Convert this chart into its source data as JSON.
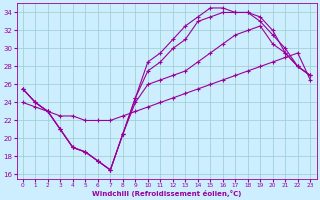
{
  "xlabel": "Windchill (Refroidissement éolien,°C)",
  "xlim": [
    -0.5,
    23.5
  ],
  "ylim": [
    15.5,
    35.0
  ],
  "xticks": [
    0,
    1,
    2,
    3,
    4,
    5,
    6,
    7,
    8,
    9,
    10,
    11,
    12,
    13,
    14,
    15,
    16,
    17,
    18,
    19,
    20,
    21,
    22,
    23
  ],
  "yticks": [
    16,
    18,
    20,
    22,
    24,
    26,
    28,
    30,
    32,
    34
  ],
  "bg_color": "#cceeff",
  "grid_color": "#99cccc",
  "line_color": "#990099",
  "lines": [
    {
      "x": [
        0,
        1,
        2,
        3,
        4,
        5,
        6,
        7,
        8,
        9,
        10,
        11,
        12,
        13,
        14,
        15,
        16,
        17,
        18,
        19,
        20,
        21,
        22,
        23
      ],
      "y": [
        25.5,
        24.0,
        23.0,
        21.0,
        19.0,
        18.5,
        17.5,
        16.5,
        20.5,
        24.0,
        26.0,
        26.5,
        27.0,
        27.5,
        28.5,
        29.5,
        30.5,
        31.5,
        32.0,
        32.5,
        30.5,
        29.5,
        28.0,
        27.0
      ]
    },
    {
      "x": [
        0,
        1,
        2,
        3,
        4,
        5,
        6,
        7,
        8,
        9,
        10,
        11,
        12,
        13,
        14,
        15,
        16,
        17,
        18,
        19,
        20,
        21,
        22,
        23
      ],
      "y": [
        25.5,
        24.0,
        23.0,
        21.0,
        19.0,
        18.5,
        17.5,
        16.5,
        20.5,
        24.5,
        28.5,
        29.5,
        31.0,
        32.5,
        33.5,
        34.5,
        34.5,
        34.0,
        34.0,
        33.5,
        32.0,
        29.5,
        28.0,
        27.0
      ]
    },
    {
      "x": [
        0,
        1,
        2,
        3,
        4,
        5,
        6,
        7,
        8,
        9,
        10,
        11,
        12,
        13,
        14,
        15,
        16,
        17,
        18,
        19,
        20,
        21,
        22,
        23
      ],
      "y": [
        25.5,
        24.0,
        23.0,
        21.0,
        19.0,
        18.5,
        17.5,
        16.5,
        20.5,
        24.5,
        27.5,
        28.5,
        30.0,
        31.0,
        33.0,
        33.5,
        34.0,
        34.0,
        34.0,
        33.0,
        31.5,
        30.0,
        28.0,
        27.0
      ]
    },
    {
      "x": [
        0,
        1,
        2,
        3,
        4,
        5,
        6,
        7,
        8,
        9,
        10,
        11,
        12,
        13,
        14,
        15,
        16,
        17,
        18,
        19,
        20,
        21,
        22,
        23
      ],
      "y": [
        24.0,
        23.5,
        23.0,
        22.5,
        22.5,
        22.0,
        22.0,
        22.0,
        22.5,
        23.0,
        23.5,
        24.0,
        24.5,
        25.0,
        25.5,
        26.0,
        26.5,
        27.0,
        27.5,
        28.0,
        28.5,
        29.0,
        29.5,
        26.5
      ]
    }
  ]
}
